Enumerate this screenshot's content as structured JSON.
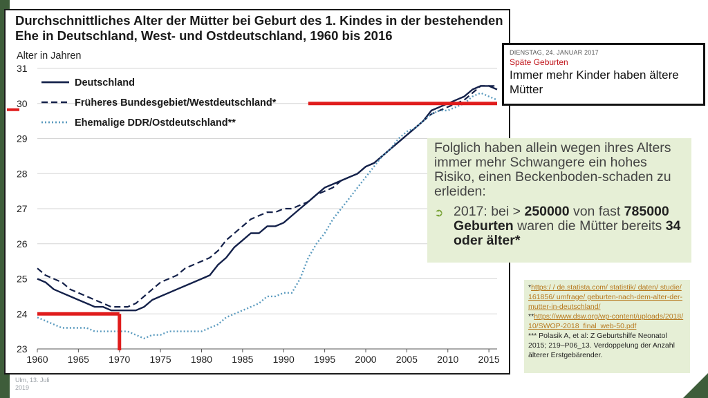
{
  "chart_data": {
    "type": "line",
    "title": "Durchschnittliches Alter der Mütter bei Geburt des 1. Kindes in der bestehenden Ehe in Deutschland, West- und Ostdeutschland, 1960 bis 2016",
    "ylabel": "Alter in Jahren",
    "xlabel": "",
    "xlim": [
      1960,
      2016
    ],
    "ylim": [
      23,
      31
    ],
    "xticks": [
      1960,
      1965,
      1970,
      1975,
      1980,
      1985,
      1990,
      1995,
      2000,
      2005,
      2010,
      2015
    ],
    "yticks": [
      23,
      24,
      25,
      26,
      27,
      28,
      29,
      30,
      31
    ],
    "grid": "horizontal",
    "legend_position": "top-left",
    "series": [
      {
        "name": "Deutschland",
        "style": "solid",
        "color": "#14214a",
        "x": [
          1960,
          1961,
          1962,
          1963,
          1964,
          1965,
          1966,
          1967,
          1968,
          1969,
          1970,
          1971,
          1972,
          1973,
          1974,
          1975,
          1976,
          1977,
          1978,
          1979,
          1980,
          1981,
          1982,
          1983,
          1984,
          1985,
          1986,
          1987,
          1988,
          1989,
          1990,
          1991,
          1992,
          1993,
          1994,
          1995,
          1996,
          1997,
          1998,
          1999,
          2000,
          2001,
          2002,
          2003,
          2004,
          2005,
          2006,
          2007,
          2008,
          2009,
          2010,
          2011,
          2012,
          2013,
          2014,
          2015,
          2016
        ],
        "y": [
          25.0,
          24.9,
          24.7,
          24.6,
          24.5,
          24.4,
          24.3,
          24.2,
          24.2,
          24.1,
          24.1,
          24.1,
          24.1,
          24.2,
          24.4,
          24.5,
          24.6,
          24.7,
          24.8,
          24.9,
          25.0,
          25.1,
          25.4,
          25.6,
          25.9,
          26.1,
          26.3,
          26.3,
          26.5,
          26.5,
          26.6,
          26.8,
          27.0,
          27.2,
          27.4,
          27.6,
          27.7,
          27.8,
          27.9,
          28.0,
          28.2,
          28.3,
          28.5,
          28.7,
          28.9,
          29.1,
          29.3,
          29.5,
          29.8,
          29.9,
          30.0,
          30.1,
          30.2,
          30.4,
          30.5,
          30.5,
          30.4
        ]
      },
      {
        "name": "Früheres Bundesgebiet/Westdeutschland*",
        "style": "dashed",
        "color": "#14214a",
        "x": [
          1960,
          1961,
          1962,
          1963,
          1964,
          1965,
          1966,
          1967,
          1968,
          1969,
          1970,
          1971,
          1972,
          1973,
          1974,
          1975,
          1976,
          1977,
          1978,
          1979,
          1980,
          1981,
          1982,
          1983,
          1984,
          1985,
          1986,
          1987,
          1988,
          1989,
          1990,
          1991,
          1992,
          1993,
          1994,
          1995,
          1996,
          1997,
          1998,
          1999,
          2000,
          2001,
          2002,
          2003,
          2004,
          2005,
          2006,
          2007,
          2008,
          2009,
          2010,
          2011,
          2012,
          2013,
          2014,
          2015,
          2016
        ],
        "y": [
          25.3,
          25.1,
          25.0,
          24.9,
          24.7,
          24.6,
          24.5,
          24.4,
          24.3,
          24.2,
          24.2,
          24.2,
          24.3,
          24.5,
          24.7,
          24.9,
          25.0,
          25.1,
          25.3,
          25.4,
          25.5,
          25.6,
          25.8,
          26.1,
          26.3,
          26.5,
          26.7,
          26.8,
          26.9,
          26.9,
          27.0,
          27.0,
          27.1,
          27.2,
          27.4,
          27.5,
          27.6,
          27.8,
          27.9,
          28.0,
          28.2,
          28.3,
          28.5,
          28.7,
          28.9,
          29.1,
          29.3,
          29.5,
          29.7,
          29.8,
          29.9,
          30.0,
          30.1,
          30.3,
          30.5,
          30.5,
          30.5
        ]
      },
      {
        "name": "Ehemalige DDR/Ostdeutschland**",
        "style": "dotted",
        "color": "#5b9bbf",
        "x": [
          1960,
          1961,
          1962,
          1963,
          1964,
          1965,
          1966,
          1967,
          1968,
          1969,
          1970,
          1971,
          1972,
          1973,
          1974,
          1975,
          1976,
          1977,
          1978,
          1979,
          1980,
          1981,
          1982,
          1983,
          1984,
          1985,
          1986,
          1987,
          1988,
          1989,
          1990,
          1991,
          1992,
          1993,
          1994,
          1995,
          1996,
          1997,
          1998,
          1999,
          2000,
          2001,
          2002,
          2003,
          2004,
          2005,
          2006,
          2007,
          2008,
          2009,
          2010,
          2011,
          2012,
          2013,
          2014,
          2015,
          2016
        ],
        "y": [
          23.9,
          23.8,
          23.7,
          23.6,
          23.6,
          23.6,
          23.6,
          23.5,
          23.5,
          23.5,
          23.5,
          23.5,
          23.4,
          23.3,
          23.4,
          23.4,
          23.5,
          23.5,
          23.5,
          23.5,
          23.5,
          23.6,
          23.7,
          23.9,
          24.0,
          24.1,
          24.2,
          24.3,
          24.5,
          24.5,
          24.6,
          24.6,
          25.0,
          25.6,
          26.0,
          26.3,
          26.7,
          27.0,
          27.3,
          27.6,
          27.9,
          28.2,
          28.5,
          28.7,
          29.0,
          29.2,
          29.3,
          29.5,
          29.7,
          29.8,
          29.8,
          29.9,
          30.0,
          30.2,
          30.3,
          30.2,
          30.1
        ]
      }
    ],
    "annotations": [
      {
        "type": "hline",
        "y": 30.0,
        "x_from": 1993,
        "x_to": 2016,
        "color": "#e01c1c"
      },
      {
        "type": "marker",
        "y": 30.0,
        "color": "#e01c1c"
      },
      {
        "type": "hline",
        "y": 24.0,
        "x_from": 1960,
        "x_to": 1970,
        "color": "#e01c1c"
      },
      {
        "type": "vline",
        "x": 1970,
        "y_from": 23.0,
        "y_to": 24.0,
        "color": "#e01c1c"
      }
    ]
  },
  "news": {
    "date": "DIENSTAG, 24. JANUAR 2017",
    "kicker": "Späte Geburten",
    "headline": "Immer mehr Kinder haben ältere Mütter"
  },
  "info": {
    "intro": "Folglich haben allein wegen ihres Alters immer mehr Schwangere ein hohes Risiko, einen Beckenboden-schaden zu erleiden:",
    "bullet_p1": "2017: bei > ",
    "bullet_b1": "250000",
    "bullet_p2": " von fast ",
    "bullet_b2": "785000  Geburten",
    "bullet_p3": " waren die Mütter bereits ",
    "bullet_b3": "34 oder älter*"
  },
  "refs": {
    "r1_prefix": "*",
    "r1_link": "https:/ / de.statista.com/ statistik/ daten/ studie/ 161856/ umfrage/ geburten-nach-dem-alter-der-mutter-in-deutschland/",
    "r2_prefix": "**",
    "r2_link": "https://www.dsw.org/wp-content/uploads/2018/10/SWOP-2018_final_web-50.pdf",
    "r3": "*** Polasik A, et al: Z Geburtshilfe Neonatol 2015; 219–P06_13. Verdoppelung der Anzahl älterer Erstgebärender."
  },
  "footer": {
    "date_line1": "Ulm, 13. Juli",
    "date_line2": "2019"
  },
  "colors": {
    "accent": "#3e5d3a",
    "highlight_red": "#e01c1c",
    "info_bg": "#e6efd6",
    "line_dark": "#14214a",
    "line_east": "#5b9bbf"
  }
}
